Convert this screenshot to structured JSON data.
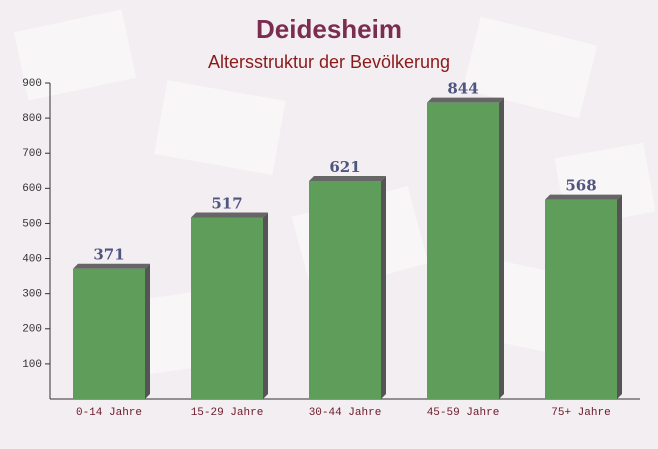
{
  "chart_data": {
    "type": "bar",
    "title": "Deidesheim",
    "subtitle": "Altersstruktur der Bevölkerung",
    "categories": [
      "0-14 Jahre",
      "15-29 Jahre",
      "30-44 Jahre",
      "45-59 Jahre",
      "75+ Jahre"
    ],
    "values": [
      371,
      517,
      621,
      844,
      568
    ],
    "color": "#5e9e5a",
    "ylim": [
      0,
      900
    ],
    "yticks": [
      100,
      200,
      300,
      400,
      500,
      600,
      700,
      800,
      900
    ],
    "grid": false
  }
}
